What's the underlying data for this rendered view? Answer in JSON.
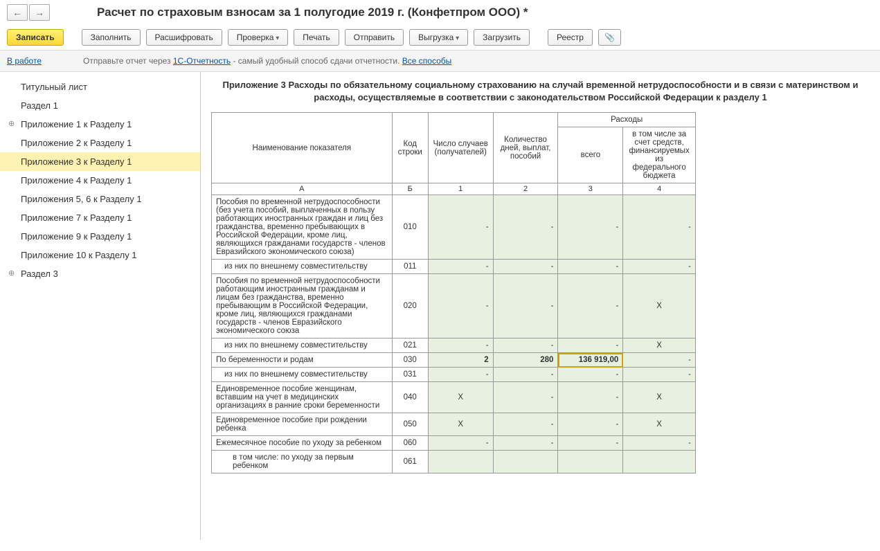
{
  "header": {
    "title": "Расчет по страховым взносам за 1 полугодие 2019 г. (Конфетпром ООО) *"
  },
  "toolbar": {
    "write": "Записать",
    "fill": "Заполнить",
    "decode": "Расшифровать",
    "check": "Проверка",
    "print": "Печать",
    "send": "Отправить",
    "export": "Выгрузка",
    "load": "Загрузить",
    "registry": "Реестр"
  },
  "infobar": {
    "status": "В работе",
    "hint_prefix": "Отправьте отчет через ",
    "link1": "1С-Отчетность",
    "hint_suffix": " - самый удобный способ сдачи отчетности. ",
    "link2": "Все способы"
  },
  "sidebar": {
    "items": [
      {
        "label": "Титульный лист",
        "expand": false
      },
      {
        "label": "Раздел 1",
        "expand": false
      },
      {
        "label": "Приложение 1 к Разделу 1",
        "expand": true
      },
      {
        "label": "Приложение 2 к Разделу 1",
        "expand": false
      },
      {
        "label": "Приложение 3 к Разделу 1",
        "expand": false,
        "selected": true
      },
      {
        "label": "Приложение 4 к Разделу 1",
        "expand": false
      },
      {
        "label": "Приложения 5, 6 к Разделу 1",
        "expand": false
      },
      {
        "label": "Приложение 7 к Разделу 1",
        "expand": false
      },
      {
        "label": "Приложение 9 к Разделу 1",
        "expand": false
      },
      {
        "label": "Приложение 10 к Разделу 1",
        "expand": false
      },
      {
        "label": "Раздел 3",
        "expand": true
      }
    ]
  },
  "content": {
    "title": "Приложение 3 Расходы по обязательному социальному страхованию на случай временной нетрудоспособности и в связи с материнством и расходы, осуществляемые в соответствии с законодательством Российской Федерации к разделу 1",
    "headers": {
      "name": "Наименование показателя",
      "code": "Код строки",
      "cases": "Число случаев (получателей)",
      "days": "Количество дней, выплат, пособий",
      "expenses": "Расходы",
      "total": "всего",
      "federal": "в том числе за счет средств, финансируемых из федерального бюджета",
      "colA": "А",
      "colB": "Б",
      "col1": "1",
      "col2": "2",
      "col3": "3",
      "col4": "4"
    },
    "rows": [
      {
        "name": "Пособия по временной нетрудоспособности (без учета пособий, выплаченных в пользу работающих иностранных граждан и лиц без гражданства, временно пребывающих в Российской Федерации, кроме лиц, являющихся гражданами государств - членов Евразийского экономического союза)",
        "code": "010",
        "c1": "-",
        "c2": "-",
        "c3": "-",
        "c4": "-"
      },
      {
        "name": "из них по внешнему совместительству",
        "code": "011",
        "indent": 1,
        "c1": "-",
        "c2": "-",
        "c3": "-",
        "c4": "-"
      },
      {
        "name": "Пособия по временной нетрудоспособности работающим иностранным гражданам и лицам без гражданства, временно пребывающим в Российской Федерации, кроме лиц, являющихся гражданами государств - членов Евразийского экономического союза",
        "code": "020",
        "c1": "-",
        "c2": "-",
        "c3": "-",
        "c4": "X",
        "c4center": true
      },
      {
        "name": "из них по внешнему совместительству",
        "code": "021",
        "indent": 1,
        "c1": "-",
        "c2": "-",
        "c3": "-",
        "c4": "X",
        "c4center": true
      },
      {
        "name": "По беременности и родам",
        "code": "030",
        "c1": "2",
        "c2": "280",
        "c3": "136 919,00",
        "c4": "-",
        "bold": true,
        "active": true
      },
      {
        "name": "из них по внешнему совместительству",
        "code": "031",
        "indent": 1,
        "c1": "-",
        "c2": "-",
        "c3": "-",
        "c4": "-"
      },
      {
        "name": "Единовременное пособие женщинам, вставшим на учет в медицинских организациях в ранние сроки беременности",
        "code": "040",
        "c1": "X",
        "c1center": true,
        "c2": "-",
        "c3": "-",
        "c4": "X",
        "c4center": true
      },
      {
        "name": "Единовременное пособие при рождении ребенка",
        "code": "050",
        "c1": "X",
        "c1center": true,
        "c2": "-",
        "c3": "-",
        "c4": "X",
        "c4center": true
      },
      {
        "name": "Ежемесячное пособие по уходу за ребенком",
        "code": "060",
        "c1": "-",
        "c2": "-",
        "c3": "-",
        "c4": "-"
      },
      {
        "name": "в том числе:\nпо уходу за первым ребенком",
        "code": "061",
        "indent": 2,
        "c1": "",
        "c2": "",
        "c3": "",
        "c4": ""
      }
    ]
  }
}
